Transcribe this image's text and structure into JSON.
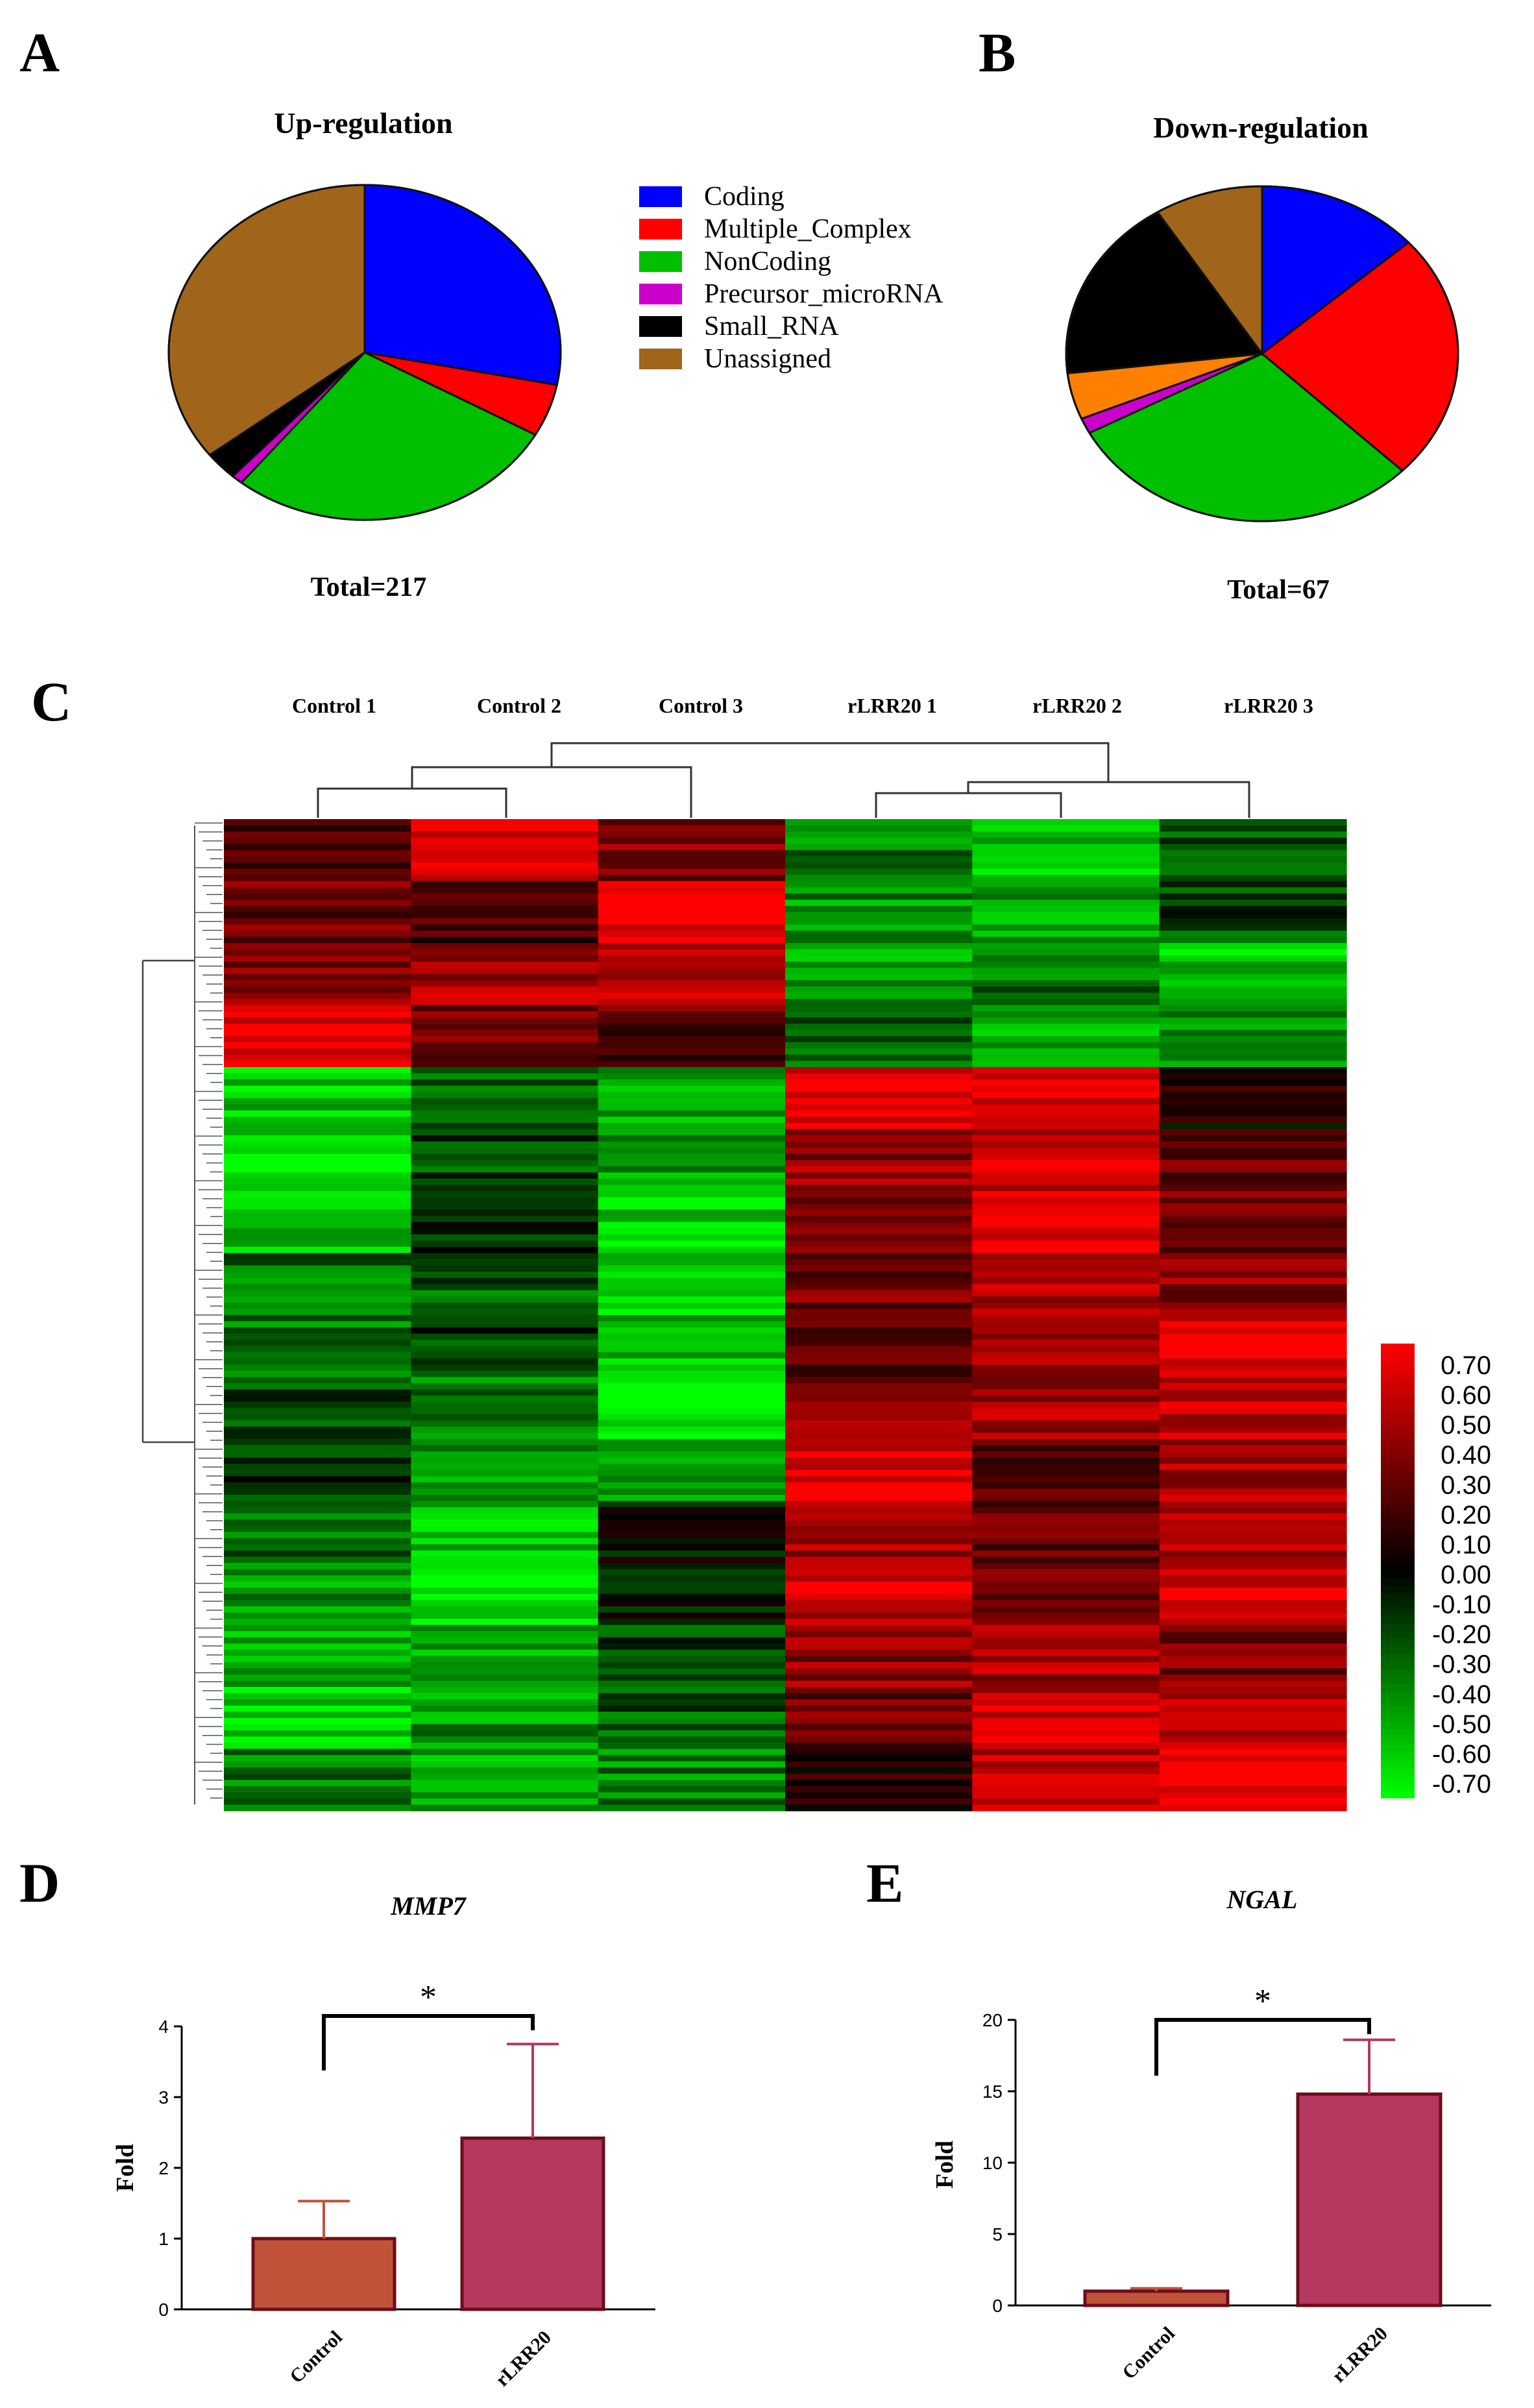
{
  "panels": {
    "A": "A",
    "B": "B",
    "C": "C",
    "D": "D",
    "E": "E"
  },
  "legend": {
    "items": [
      {
        "label": "Coding",
        "color": "#0000ff"
      },
      {
        "label": "Multiple_Complex",
        "color": "#ff0000"
      },
      {
        "label": "NonCoding",
        "color": "#00c000"
      },
      {
        "label": "Precursor_microRNA",
        "color": "#cc00cc"
      },
      {
        "label": "Small_RNA",
        "color": "#000000"
      },
      {
        "label": "Unassigned",
        "color": "#a0651a"
      }
    ]
  },
  "chart_data": [
    {
      "type": "pie",
      "panel": "A",
      "title": "Up-regulation",
      "total_label": "Total=217",
      "slices": [
        {
          "name": "Coding",
          "value": 61,
          "color": "#0000ff"
        },
        {
          "name": "Multiple_Complex",
          "value": 11,
          "color": "#ff0000"
        },
        {
          "name": "NonCoding",
          "value": 60,
          "color": "#00c000"
        },
        {
          "name": "Precursor_microRNA",
          "value": 2,
          "color": "#cc00cc"
        },
        {
          "name": "Small_RNA",
          "value": 6,
          "color": "#000000"
        },
        {
          "name": "Unassigned",
          "value": 77,
          "color": "#a0651a"
        }
      ]
    },
    {
      "type": "pie",
      "panel": "B",
      "title": "Down-regulation",
      "total_label": "Total=67",
      "slices": [
        {
          "name": "Coding",
          "value": 9,
          "color": "#0000ff"
        },
        {
          "name": "Multiple_Complex",
          "value": 16,
          "color": "#ff0000"
        },
        {
          "name": "NonCoding",
          "value": 20,
          "color": "#00c000"
        },
        {
          "name": "Precursor_microRNA",
          "value": 1,
          "color": "#cc00cc"
        },
        {
          "name": "",
          "value": 3,
          "color": "#ff7f00"
        },
        {
          "name": "Small_RNA",
          "value": 12,
          "color": "#000000"
        },
        {
          "name": "Unassigned",
          "value": 6,
          "color": "#a0651a"
        }
      ]
    },
    {
      "type": "heatmap",
      "panel": "C",
      "columns": [
        "Control 1",
        "Control 2",
        "Control 3",
        "rLRR20 1",
        "rLRR20 2",
        "rLRR20 3"
      ],
      "scale_ticks": [
        "0.70",
        "0.60",
        "0.50",
        "0.40",
        "0.30",
        "0.20",
        "0.10",
        "0.00",
        "-0.10",
        "-0.20",
        "-0.30",
        "-0.40",
        "-0.50",
        "-0.60",
        "-0.70"
      ],
      "range": [
        -0.7,
        0.7
      ],
      "block_profile": [
        [
          0.25,
          0.65,
          0.35,
          -0.35,
          -0.55,
          -0.25
        ],
        [
          0.3,
          0.2,
          0.7,
          -0.4,
          -0.45,
          -0.2
        ],
        [
          0.4,
          0.45,
          0.5,
          -0.45,
          -0.3,
          -0.55
        ],
        [
          0.65,
          0.35,
          0.25,
          -0.3,
          -0.5,
          -0.35
        ],
        [
          -0.55,
          -0.3,
          -0.45,
          0.65,
          0.6,
          0.05
        ],
        [
          -0.6,
          -0.2,
          -0.4,
          0.4,
          0.55,
          0.3
        ],
        [
          -0.5,
          -0.1,
          -0.55,
          0.35,
          0.7,
          0.3
        ],
        [
          -0.3,
          -0.25,
          -0.6,
          0.3,
          0.5,
          0.4
        ],
        [
          -0.35,
          -0.15,
          -0.5,
          0.25,
          0.4,
          0.65
        ],
        [
          -0.2,
          -0.35,
          -0.7,
          0.35,
          0.45,
          0.55
        ],
        [
          -0.15,
          -0.4,
          -0.45,
          0.65,
          0.25,
          0.45
        ],
        [
          -0.3,
          -0.55,
          -0.05,
          0.45,
          0.3,
          0.5
        ],
        [
          -0.4,
          -0.65,
          -0.1,
          0.55,
          0.35,
          0.6
        ],
        [
          -0.45,
          -0.5,
          -0.2,
          0.4,
          0.45,
          0.35
        ],
        [
          -0.6,
          -0.4,
          -0.25,
          0.3,
          0.55,
          0.5
        ],
        [
          -0.35,
          -0.45,
          -0.35,
          0.1,
          0.5,
          0.7
        ]
      ]
    },
    {
      "type": "bar",
      "panel": "D",
      "title": "MMP7",
      "ylabel": "Fold",
      "categories": [
        "Control",
        "rLRR20"
      ],
      "values": [
        1.0,
        2.42
      ],
      "errors": [
        0.53,
        1.33
      ],
      "ylim": [
        0,
        4
      ],
      "yticks": [
        0,
        1,
        2,
        3,
        4
      ],
      "colors": [
        "#c0533a",
        "#b5385f"
      ],
      "significance": "*"
    },
    {
      "type": "bar",
      "panel": "E",
      "title": "NGAL",
      "ylabel": "Fold",
      "categories": [
        "Control",
        "rLRR20"
      ],
      "values": [
        1.0,
        14.8
      ],
      "errors": [
        0.2,
        3.8
      ],
      "ylim": [
        0,
        20
      ],
      "yticks": [
        0,
        5,
        10,
        15,
        20
      ],
      "colors": [
        "#c0533a",
        "#b5385f"
      ],
      "significance": "*"
    }
  ]
}
